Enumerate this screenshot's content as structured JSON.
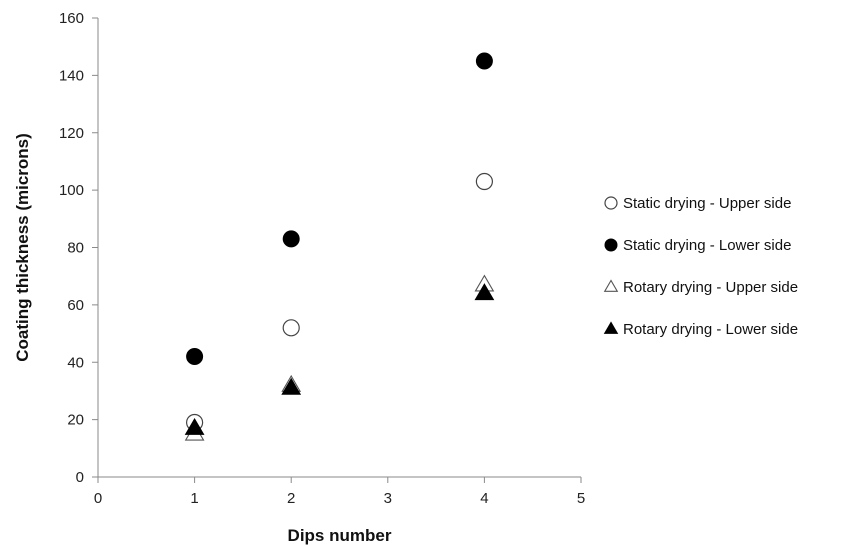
{
  "chart_data": {
    "type": "scatter",
    "title": "",
    "xlabel": "Dips number",
    "ylabel": "Coating thickness (microns)",
    "xlim": [
      0,
      5
    ],
    "ylim": [
      0,
      160
    ],
    "xticks": [
      0,
      1,
      2,
      3,
      4,
      5
    ],
    "yticks": [
      0,
      20,
      40,
      60,
      80,
      100,
      120,
      140,
      160
    ],
    "grid": false,
    "legend_position": "right",
    "series": [
      {
        "name": "Static drying - Upper side",
        "marker": "open-circle",
        "color": "#000000",
        "points": [
          {
            "x": 1,
            "y": 19
          },
          {
            "x": 2,
            "y": 52
          },
          {
            "x": 4,
            "y": 103
          }
        ]
      },
      {
        "name": "Static drying - Lower side",
        "marker": "filled-circle",
        "color": "#000000",
        "points": [
          {
            "x": 1,
            "y": 42
          },
          {
            "x": 2,
            "y": 83
          },
          {
            "x": 4,
            "y": 145
          }
        ]
      },
      {
        "name": "Rotary drying - Upper side",
        "marker": "open-triangle",
        "color": "#000000",
        "points": [
          {
            "x": 1,
            "y": 15
          },
          {
            "x": 2,
            "y": 32
          },
          {
            "x": 4,
            "y": 67
          }
        ]
      },
      {
        "name": "Rotary drying - Lower side",
        "marker": "filled-triangle",
        "color": "#000000",
        "points": [
          {
            "x": 1,
            "y": 17
          },
          {
            "x": 2,
            "y": 31
          },
          {
            "x": 4,
            "y": 64
          }
        ]
      }
    ]
  }
}
